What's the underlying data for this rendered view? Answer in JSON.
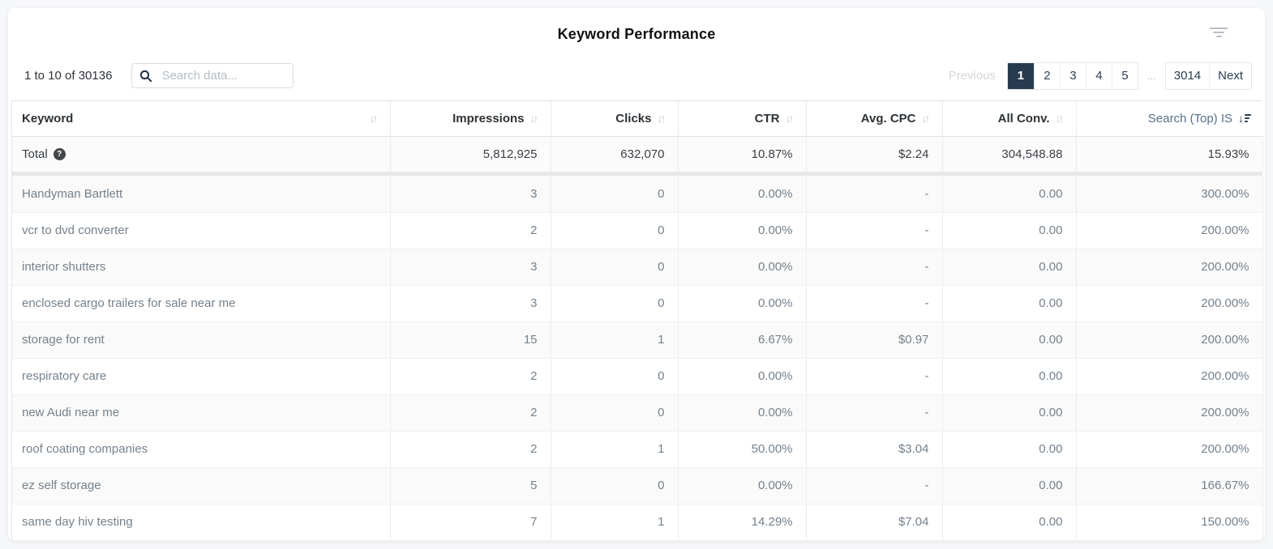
{
  "header": {
    "title": "Keyword Performance"
  },
  "toolbar": {
    "record_count": "1 to 10 of 30136",
    "search": {
      "placeholder": "Search data...",
      "value": ""
    }
  },
  "pagination": {
    "previous_label": "Previous",
    "pages": [
      "1",
      "2",
      "3",
      "4",
      "5"
    ],
    "active_page": "1",
    "ellipsis": "...",
    "last_page": "3014",
    "next_label": "Next"
  },
  "table": {
    "columns": [
      {
        "label": "Keyword",
        "sort": "inactive",
        "align": "left"
      },
      {
        "label": "Impressions",
        "sort": "inactive",
        "align": "right"
      },
      {
        "label": "Clicks",
        "sort": "inactive",
        "align": "right"
      },
      {
        "label": "CTR",
        "sort": "inactive",
        "align": "right"
      },
      {
        "label": "Avg. CPC",
        "sort": "inactive",
        "align": "right"
      },
      {
        "label": "All Conv.",
        "sort": "inactive",
        "align": "right"
      },
      {
        "label": "Search (Top) IS",
        "sort": "desc",
        "align": "right"
      }
    ],
    "total_row": {
      "label": "Total",
      "values": [
        "5,812,925",
        "632,070",
        "10.87%",
        "$2.24",
        "304,548.88",
        "15.93%"
      ]
    },
    "rows": [
      {
        "keyword": "Handyman Bartlett",
        "values": [
          "3",
          "0",
          "0.00%",
          "-",
          "0.00",
          "300.00%"
        ]
      },
      {
        "keyword": "vcr to dvd converter",
        "values": [
          "2",
          "0",
          "0.00%",
          "-",
          "0.00",
          "200.00%"
        ]
      },
      {
        "keyword": "interior shutters",
        "values": [
          "3",
          "0",
          "0.00%",
          "-",
          "0.00",
          "200.00%"
        ]
      },
      {
        "keyword": "enclosed cargo trailers for sale near me",
        "values": [
          "3",
          "0",
          "0.00%",
          "-",
          "0.00",
          "200.00%"
        ]
      },
      {
        "keyword": "storage for rent",
        "values": [
          "15",
          "1",
          "6.67%",
          "$0.97",
          "0.00",
          "200.00%"
        ]
      },
      {
        "keyword": "respiratory care",
        "values": [
          "2",
          "0",
          "0.00%",
          "-",
          "0.00",
          "200.00%"
        ]
      },
      {
        "keyword": "new Audi near me",
        "values": [
          "2",
          "0",
          "0.00%",
          "-",
          "0.00",
          "200.00%"
        ]
      },
      {
        "keyword": "roof coating companies",
        "values": [
          "2",
          "1",
          "50.00%",
          "$3.04",
          "0.00",
          "200.00%"
        ]
      },
      {
        "keyword": "ez self storage",
        "values": [
          "5",
          "0",
          "0.00%",
          "-",
          "0.00",
          "166.67%"
        ]
      },
      {
        "keyword": "same day hiv testing",
        "values": [
          "7",
          "1",
          "14.29%",
          "$7.04",
          "0.00",
          "150.00%"
        ]
      }
    ],
    "help_glyph": "?"
  },
  "icons": {
    "search": "magnifier",
    "filter": "filter-lines",
    "help": "question-circle",
    "sort_inactive": "↓↑",
    "sort_desc_arrow": "↓"
  },
  "colors": {
    "accent_navy": "#263b50",
    "active_column": "#567089",
    "row_alt_bg": "#fafafa",
    "body_text": "#75818c",
    "dark_text": "#2d3237"
  }
}
